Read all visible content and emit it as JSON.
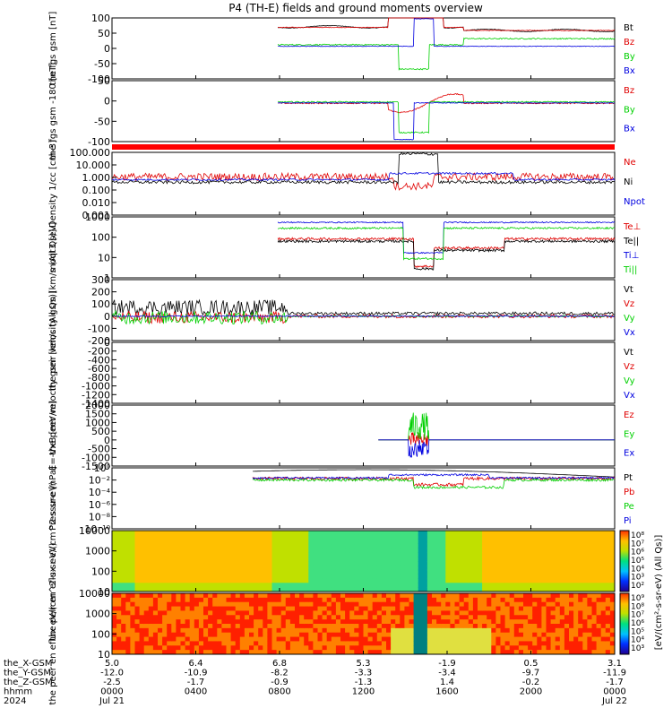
{
  "title": "P4 (TH-E) fields and ground moments overview",
  "colors": {
    "black": "#000000",
    "red": "#e00000",
    "green": "#00d000",
    "blue": "#0000e0",
    "storage_bar": "#ff0000"
  },
  "x_axis": {
    "time_ticks": [
      "0000",
      "0400",
      "0800",
      "1200",
      "1600",
      "2000",
      "0000"
    ],
    "date_labels": [
      "Jul 21",
      "Jul 22"
    ],
    "ephemeris": [
      {
        "label": "the_X-GSM",
        "values": [
          "5.0",
          "6.4",
          "6.8",
          "5.3",
          "-1.9",
          "0.5",
          "3.1"
        ]
      },
      {
        "label": "the_Y-GSM",
        "values": [
          "-12.0",
          "-10.9",
          "-8.2",
          "-3.3",
          "-3.4",
          "-9.7",
          "-11.9"
        ]
      },
      {
        "label": "the_Z-GSM",
        "values": [
          "-2.5",
          "-1.7",
          "-0.9",
          "-1.3",
          "1.4",
          "-0.2",
          "-1.7"
        ]
      },
      {
        "label": "hhmm",
        "values": [
          "0000",
          "0400",
          "0800",
          "1200",
          "1600",
          "2000",
          "0000"
        ]
      },
      {
        "label": "2024",
        "values": [
          "Jul 21",
          "",
          "",
          "",
          "",
          "",
          "Jul 22"
        ]
      }
    ]
  },
  "chart_data": [
    {
      "type": "line",
      "ylabel": "the fgs gsm [nT]",
      "ylim": [
        -100,
        100
      ],
      "yticks": [
        "100",
        "50",
        "0",
        "-50",
        "-100"
      ],
      "series": [
        {
          "name": "Bt",
          "color": "black"
        },
        {
          "name": "Bz",
          "color": "red"
        },
        {
          "name": "By",
          "color": "green"
        },
        {
          "name": "Bx",
          "color": "blue"
        }
      ]
    },
    {
      "type": "line",
      "ylabel": "the fgs gsm -180 [nT]",
      "ylim": [
        -120,
        60
      ],
      "yticks": [
        "50",
        "0",
        "-50",
        "-100"
      ],
      "series": [
        {
          "name": "Bz",
          "color": "red"
        },
        {
          "name": "By",
          "color": "green"
        },
        {
          "name": "Bx",
          "color": "blue"
        }
      ]
    },
    {
      "type": "line",
      "ylabel": "Density 1/cc [cm-3]",
      "scale": "log",
      "ylim": [
        0.001,
        100
      ],
      "yticks": [
        "100.000",
        "10.000",
        "1.000",
        "0.100",
        "0.010",
        "0.001"
      ],
      "series": [
        {
          "name": "Ne",
          "color": "red"
        },
        {
          "name": "Ni",
          "color": "black"
        },
        {
          "name": "Npot",
          "color": "blue"
        }
      ]
    },
    {
      "type": "line",
      "ylabel": "moqt3 [eV]",
      "scale": "log",
      "ylim": [
        1,
        10000
      ],
      "yticks": [
        "1000",
        "100",
        "10",
        "1"
      ],
      "series": [
        {
          "name": "Te⊥",
          "color": "red"
        },
        {
          "name": "Te||",
          "color": "black"
        },
        {
          "name": "Ti⊥",
          "color": "blue"
        },
        {
          "name": "Ti||",
          "color": "green"
        }
      ]
    },
    {
      "type": "line",
      "ylabel": "the peir velocity gsm [km/s (All Qs)]",
      "ylim": [
        -200,
        300
      ],
      "yticks": [
        "300",
        "200",
        "100",
        "0",
        "-100",
        "-200"
      ],
      "series": [
        {
          "name": "Vt",
          "color": "black"
        },
        {
          "name": "Vz",
          "color": "red"
        },
        {
          "name": "Vy",
          "color": "green"
        },
        {
          "name": "Vx",
          "color": "blue"
        }
      ]
    },
    {
      "type": "line",
      "ylabel": "the peer velocity gsm [km/s (All Qs)]",
      "ylim": [
        -1400,
        0
      ],
      "yticks": [
        "0",
        "-200",
        "-400",
        "-600",
        "-800",
        "-1000",
        "-1200",
        "-1400"
      ],
      "series": [
        {
          "name": "Vt",
          "color": "black"
        },
        {
          "name": "Vz",
          "color": "red"
        },
        {
          "name": "Vy",
          "color": "green"
        },
        {
          "name": "Vx",
          "color": "blue"
        }
      ]
    },
    {
      "type": "line",
      "ylabel": "E=-VxB [mV/m]",
      "ylim": [
        -1500,
        2000
      ],
      "yticks": [
        "2000",
        "1500",
        "1000",
        "500",
        "0",
        "-500",
        "-1000",
        "-1500"
      ],
      "series": [
        {
          "name": "Ez",
          "color": "red"
        },
        {
          "name": "Ey",
          "color": "green"
        },
        {
          "name": "Ex",
          "color": "blue"
        }
      ]
    },
    {
      "type": "line",
      "ylabel": "Pressure [nPa]",
      "scale": "log",
      "ylim": [
        1e-10,
        1
      ],
      "yticks": [
        "10⁰",
        "10⁻²",
        "10⁻⁴",
        "10⁻⁶",
        "10⁻⁸",
        "10⁻¹⁰"
      ],
      "series": [
        {
          "name": "Pt",
          "color": "black"
        },
        {
          "name": "Pb",
          "color": "red"
        },
        {
          "name": "Pe",
          "color": "green"
        },
        {
          "name": "Pi",
          "color": "blue"
        }
      ]
    },
    {
      "type": "heatmap",
      "ylabel": "the peir en eflux eV/(cm^2-s-sr-eV)",
      "scale": "log",
      "ylim": [
        5,
        30000
      ],
      "yticks": [
        "10000",
        "1000",
        "100",
        "10"
      ],
      "colorbar_ticks": [
        "10⁸",
        "10⁷",
        "10⁶",
        "10⁵",
        "10⁴",
        "10³",
        "10²"
      ]
    },
    {
      "type": "heatmap",
      "ylabel": "the peer en eflux eV/(cm^2-s-sr-eV)",
      "scale": "log",
      "ylim": [
        5,
        30000
      ],
      "yticks": [
        "10000",
        "1000",
        "100",
        "10"
      ],
      "colorbar_ticks": [
        "10⁹",
        "10⁸",
        "10⁷",
        "10⁶",
        "10⁵",
        "10⁴",
        "10³"
      ],
      "colorbar_label": "[eV/(cm²-s-sr-eV) (All Qs)]"
    }
  ]
}
